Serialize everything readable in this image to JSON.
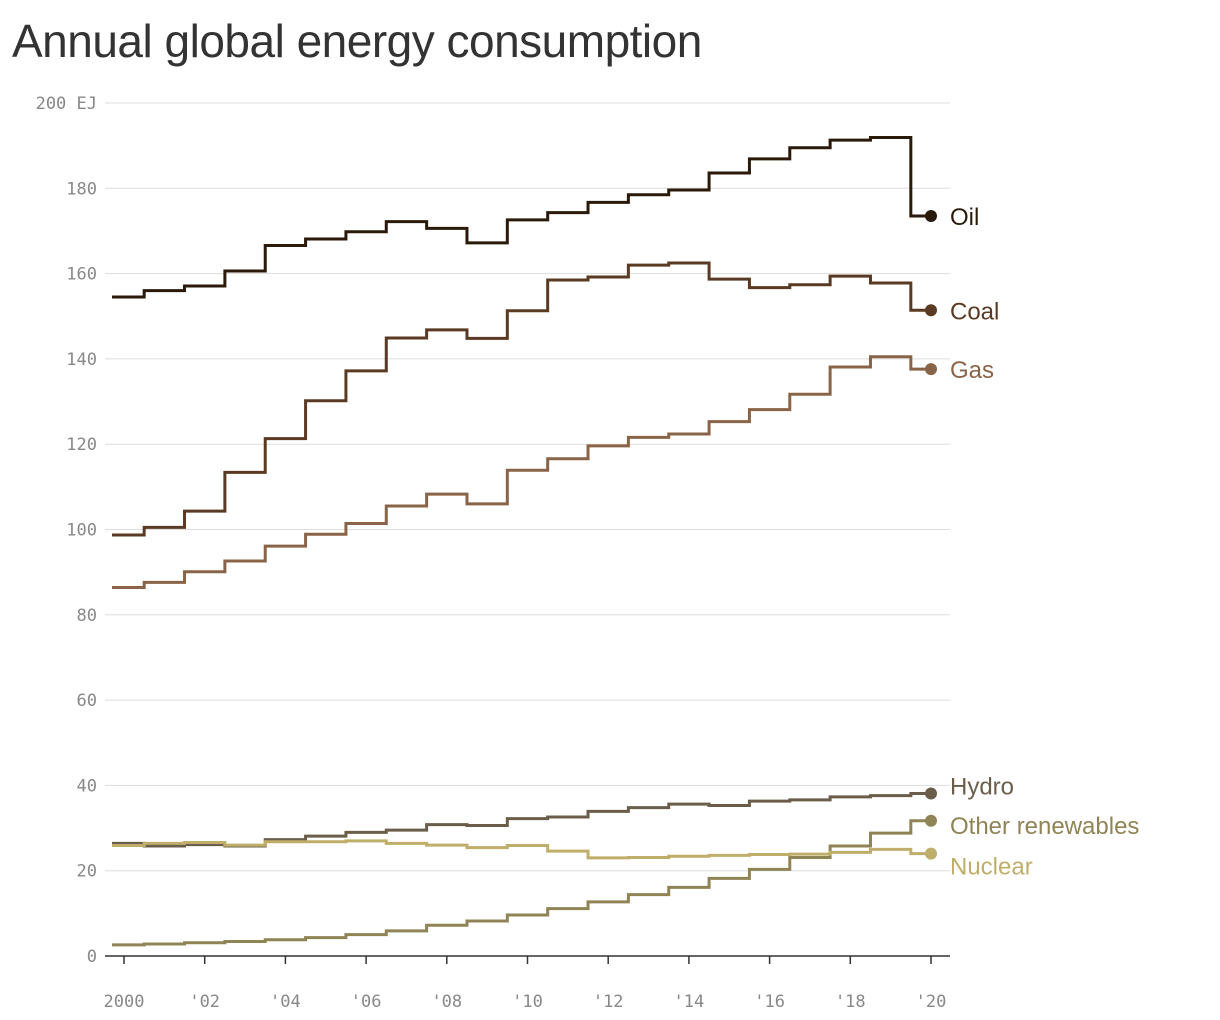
{
  "chart_data": {
    "type": "line",
    "step": true,
    "title": "Annual global energy consumption",
    "xlabel": "",
    "ylabel": "",
    "x": [
      2000,
      2001,
      2002,
      2003,
      2004,
      2005,
      2006,
      2007,
      2008,
      2009,
      2010,
      2011,
      2012,
      2013,
      2014,
      2015,
      2016,
      2017,
      2018,
      2019,
      2020
    ],
    "xticks": [
      2000,
      2002,
      2004,
      2006,
      2008,
      2010,
      2012,
      2014,
      2016,
      2018,
      2020
    ],
    "xtick_labels": [
      "2000",
      "'02",
      "'04",
      "'06",
      "'08",
      "'10",
      "'12",
      "'14",
      "'16",
      "'18",
      "'20"
    ],
    "yticks": [
      0,
      20,
      40,
      60,
      80,
      100,
      120,
      140,
      160,
      180,
      200
    ],
    "ytick_labels": [
      "0",
      "20",
      "40",
      "60",
      "80",
      "100",
      "120",
      "140",
      "160",
      "180",
      "200 EJ"
    ],
    "ylim": [
      0,
      200
    ],
    "grid": true,
    "legend": "direct labels at line ends",
    "series": [
      {
        "name": "Oil",
        "color": "#2a1a0a",
        "values": [
          154.5,
          156,
          157.1,
          160.6,
          166.6,
          168.1,
          169.8,
          172.2,
          170.6,
          167.2,
          172.6,
          174.3,
          176.7,
          178.5,
          179.6,
          183.6,
          186.9,
          189.5,
          191.3,
          191.9,
          173.5
        ]
      },
      {
        "name": "Coal",
        "color": "#5a3a22",
        "values": [
          98.7,
          100.5,
          104.3,
          113.4,
          121.3,
          130.2,
          137.2,
          144.9,
          146.8,
          144.8,
          151.3,
          158.5,
          159.2,
          162.0,
          162.5,
          158.7,
          156.7,
          157.4,
          159.4,
          157.8,
          151.4
        ]
      },
      {
        "name": "Gas",
        "color": "#8a6448",
        "values": [
          86.4,
          87.6,
          90.1,
          92.6,
          96.1,
          98.9,
          101.4,
          105.5,
          108.3,
          106.0,
          113.9,
          116.6,
          119.6,
          121.6,
          122.4,
          125.3,
          128.1,
          131.7,
          138.1,
          140.5,
          137.6
        ]
      },
      {
        "name": "Hydro",
        "color": "#6a5e4a",
        "values": [
          26.4,
          25.8,
          26.1,
          25.8,
          27.3,
          28.1,
          29.0,
          29.5,
          30.8,
          30.6,
          32.2,
          32.6,
          33.9,
          34.8,
          35.6,
          35.3,
          36.3,
          36.6,
          37.3,
          37.6,
          38.1
        ]
      },
      {
        "name": "Other renewables",
        "color": "#8f8455",
        "values": [
          2.6,
          2.8,
          3.1,
          3.4,
          3.8,
          4.3,
          5.0,
          5.9,
          7.2,
          8.2,
          9.6,
          11.1,
          12.7,
          14.4,
          16.1,
          18.2,
          20.3,
          23.1,
          25.8,
          28.8,
          31.7
        ]
      },
      {
        "name": "Nuclear",
        "color": "#bfae6a",
        "values": [
          25.9,
          26.4,
          26.6,
          26.0,
          26.8,
          26.8,
          27.0,
          26.4,
          26.0,
          25.4,
          25.9,
          24.6,
          23.0,
          23.1,
          23.4,
          23.6,
          23.8,
          23.9,
          24.3,
          25.0,
          24.0
        ]
      }
    ]
  }
}
